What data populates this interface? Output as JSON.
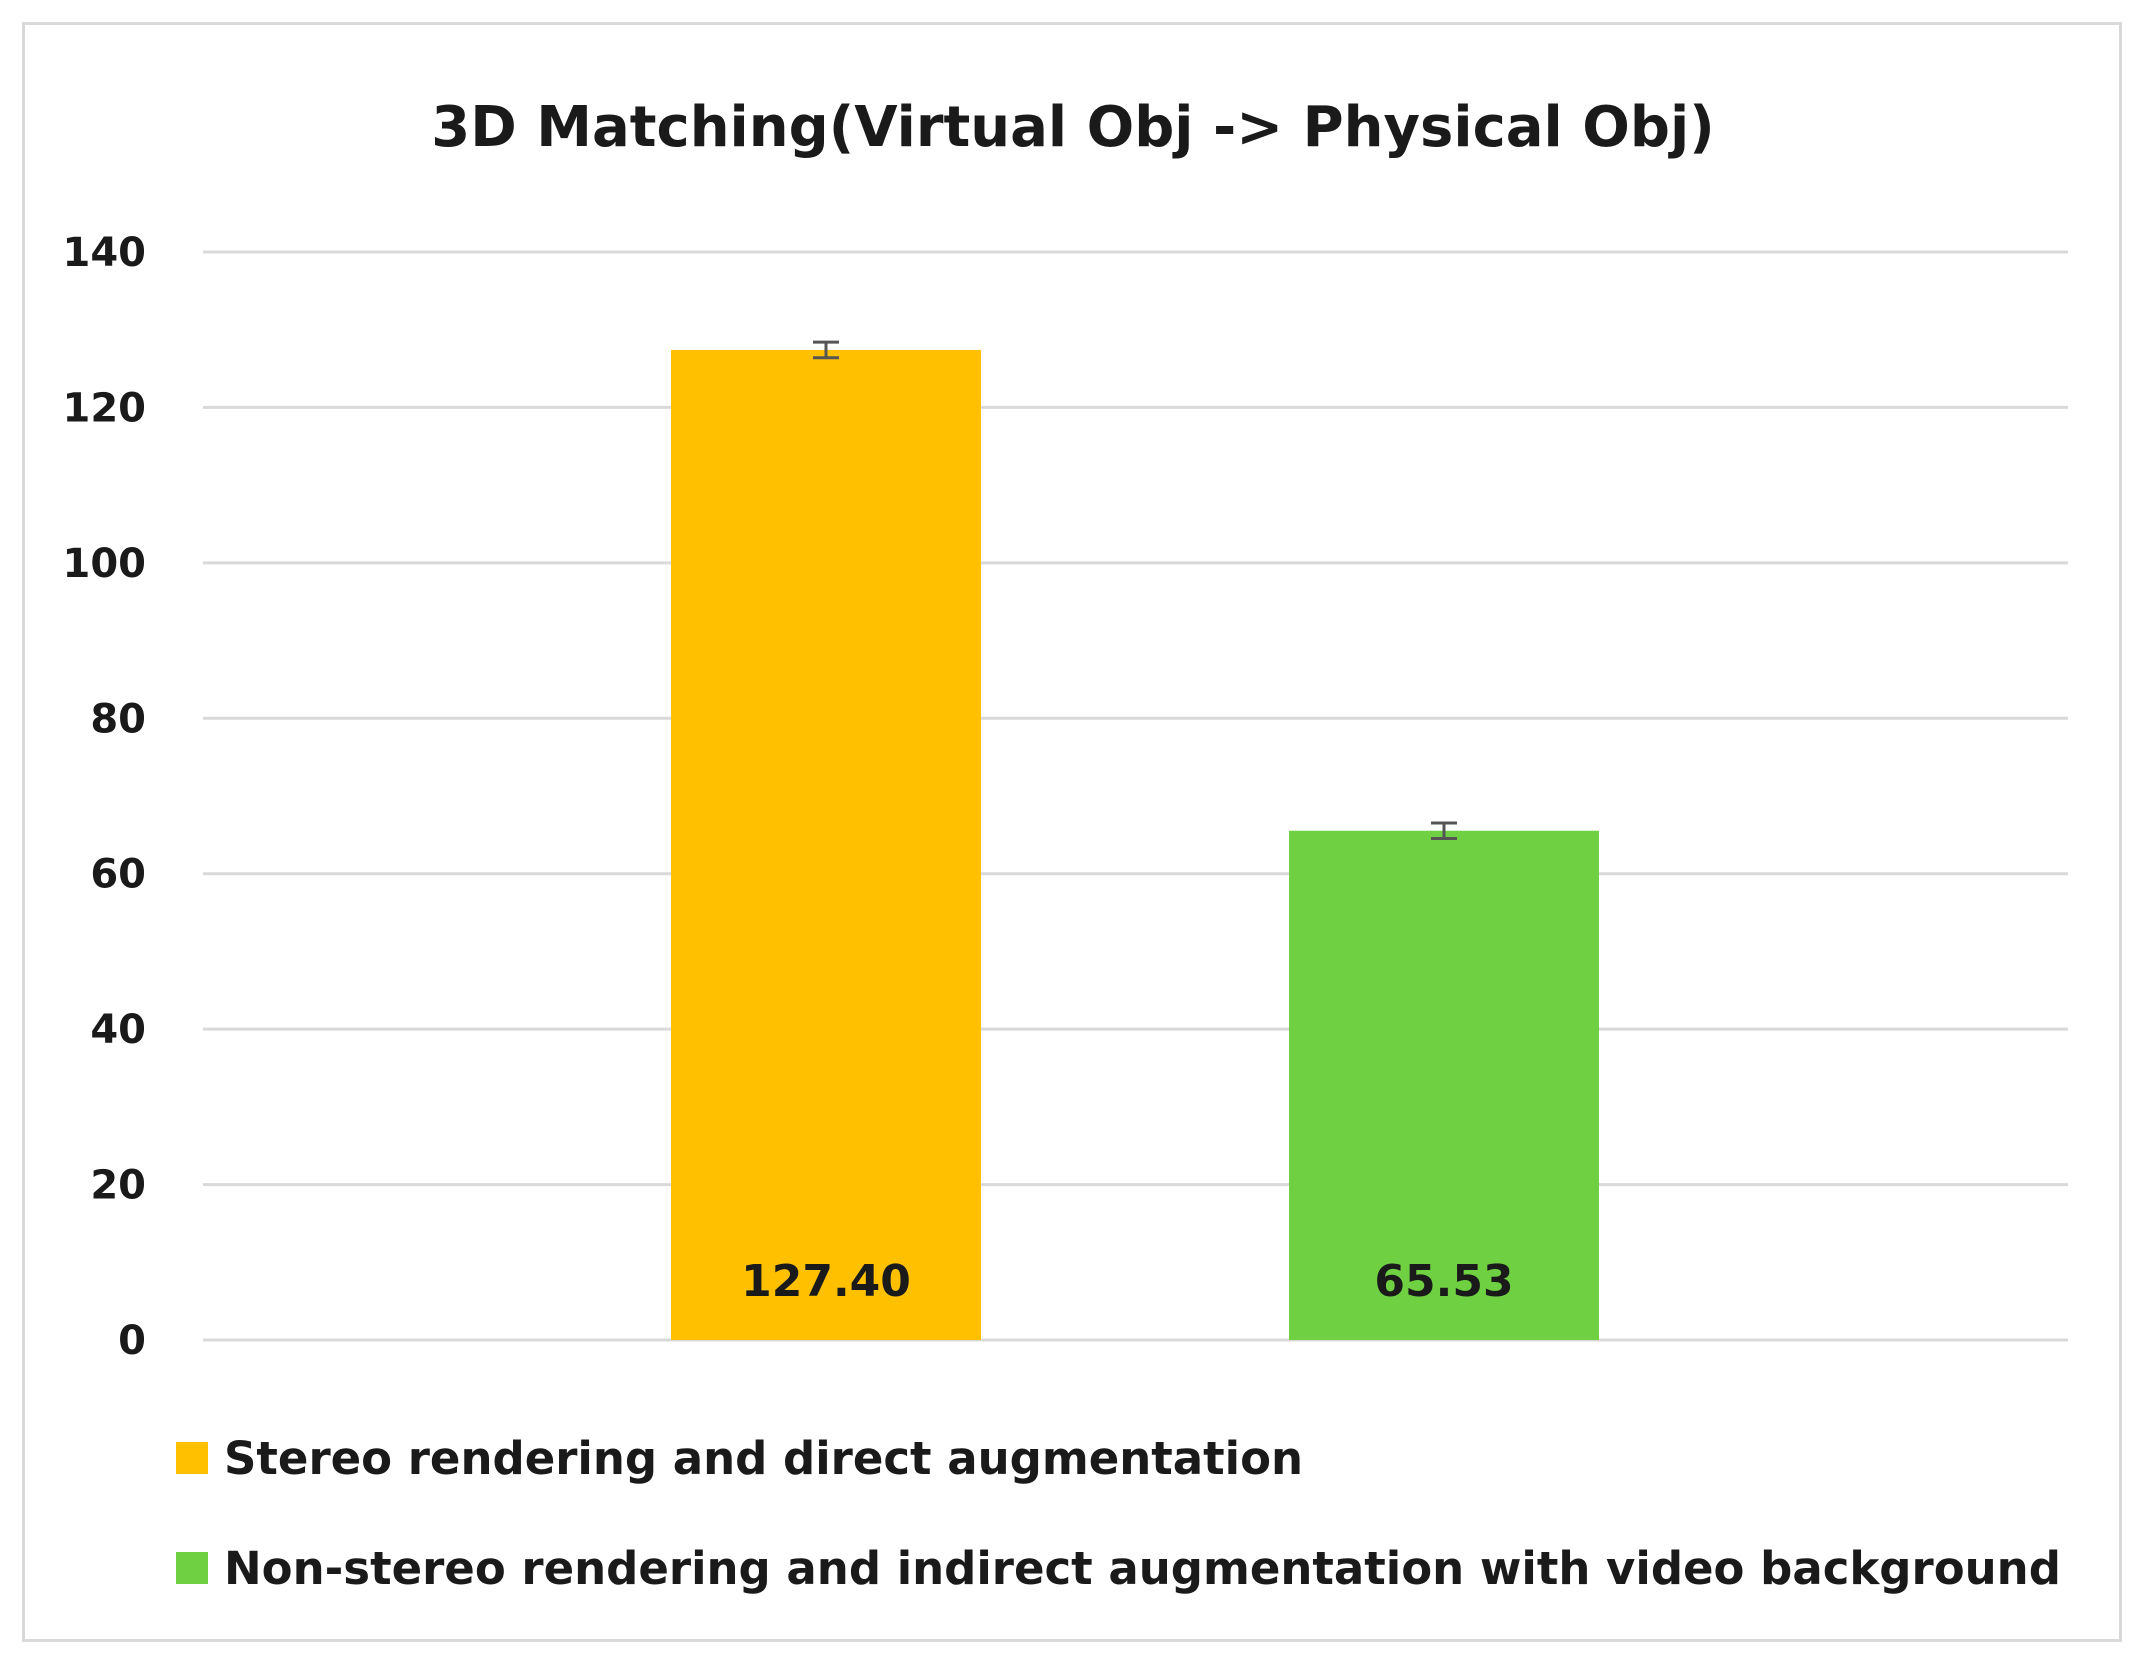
{
  "chart_data": {
    "type": "bar",
    "title": "3D Matching(Virtual Obj -> Physical Obj)",
    "xlabel": "",
    "ylabel": "",
    "ylim": [
      0,
      140
    ],
    "yticks": [
      0,
      20,
      40,
      60,
      80,
      100,
      120,
      140
    ],
    "grid": true,
    "legend_position": "bottom-left",
    "series": [
      {
        "name": "Stereo rendering and direct augmentation",
        "value": 127.4,
        "error": 1.0,
        "label": "127.40",
        "color": "#FFC000"
      },
      {
        "name": "Non-stereo rendering and indirect augmentation with video background",
        "value": 65.53,
        "error": 1.0,
        "label": "65.53",
        "color": "#6FD142"
      }
    ]
  }
}
